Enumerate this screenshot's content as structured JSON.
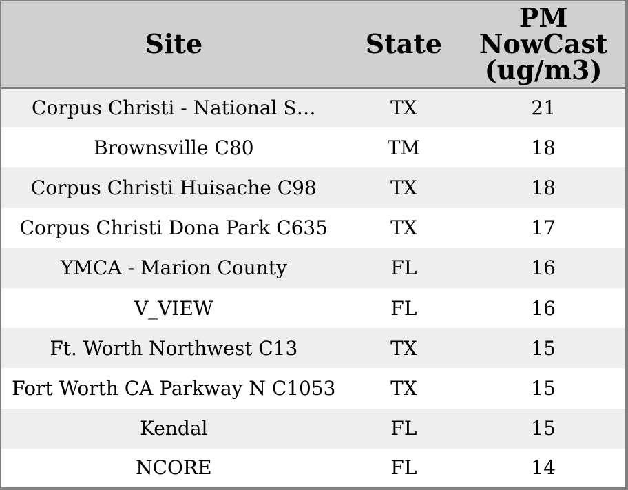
{
  "colors": {
    "header_bg": "#d0d0d0",
    "row_bg": "#ffffff",
    "row_alt_bg": "#eeeeee",
    "border_color": "#808080",
    "text_color": "#000000"
  },
  "table": {
    "columns": [
      {
        "key": "site",
        "label": "Site"
      },
      {
        "key": "state",
        "label": "State"
      },
      {
        "key": "value",
        "label": "PM NowCast (ug/m3)"
      }
    ],
    "rows": [
      {
        "site": "Corpus Christi - National S…",
        "state": "TX",
        "value": "21"
      },
      {
        "site": "Brownsville C80",
        "state": "TM",
        "value": "18"
      },
      {
        "site": "Corpus Christi Huisache C98",
        "state": "TX",
        "value": "18"
      },
      {
        "site": "Corpus Christi Dona Park C635",
        "state": "TX",
        "value": "17"
      },
      {
        "site": "YMCA - Marion County",
        "state": "FL",
        "value": "16"
      },
      {
        "site": "V_VIEW",
        "state": "FL",
        "value": "16"
      },
      {
        "site": "Ft. Worth Northwest C13",
        "state": "TX",
        "value": "15"
      },
      {
        "site": "Fort Worth CA Parkway N C1053",
        "state": "TX",
        "value": "15"
      },
      {
        "site": "Kendal",
        "state": "FL",
        "value": "15"
      },
      {
        "site": "NCORE",
        "state": "FL",
        "value": "14"
      }
    ]
  }
}
